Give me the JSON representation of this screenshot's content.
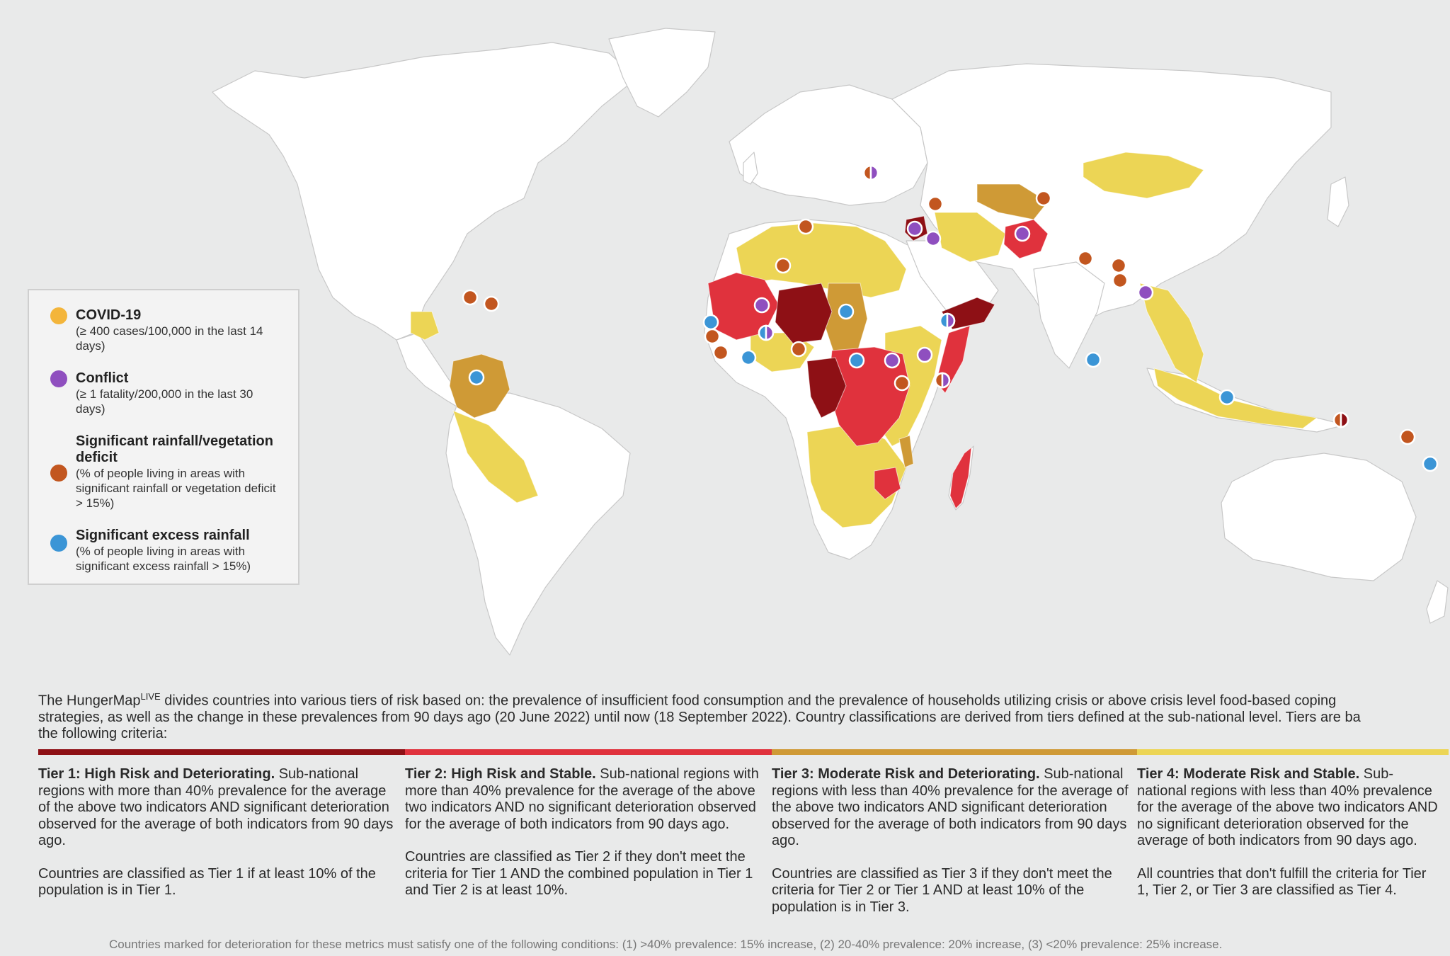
{
  "colors": {
    "background": "#e9eaea",
    "land": "#ffffff",
    "border": "#c8c8c8",
    "tier1": "#8e1015",
    "tier2": "#e0323d",
    "tier3": "#cf9a36",
    "tier4": "#ecd555",
    "covid": "#f3b53b",
    "conflict": "#8f4fbf",
    "deficit": "#c2561f",
    "excess": "#3b95d6"
  },
  "legend": [
    {
      "key": "covid",
      "title": "COVID-19",
      "desc": "(≥ 400 cases/100,000 in the last 14 days)",
      "color": "#f3b53b"
    },
    {
      "key": "conflict",
      "title": "Conflict",
      "desc": "(≥ 1 fatality/200,000 in the last 30 days)",
      "color": "#8f4fbf"
    },
    {
      "key": "deficit",
      "title": "Significant rainfall/vegetation deficit",
      "desc": "(% of people living in areas with significant rainfall or vegetation deficit > 15%)",
      "color": "#c2561f"
    },
    {
      "key": "excess",
      "title": "Significant excess rainfall",
      "desc": "(% of people living in areas with significant excess rainfall > 15%)",
      "color": "#3b95d6"
    }
  ],
  "intro": {
    "brand": "The HungerMap",
    "brand_sup": "LIVE",
    "line1_rest": " divides countries into various tiers of risk based on: the prevalence of insufficient food consumption and the prevalence of households utilizing crisis or above crisis level food-based coping",
    "line2": "strategies, as well as the change in these prevalences from 90 days ago (20 June 2022) until now (18 September 2022). Country classifications are derived from tiers defined at the sub-national level. Tiers are ba",
    "line3": "the following criteria:"
  },
  "tiers": [
    {
      "title": "Tier 1: High Risk and Deteriorating.",
      "description": "Sub-national regions with more than 40% prevalence for the average of the above two indicators AND significant deterioration observed for the average of both indicators from 90 days ago.",
      "classification": "Countries are classified as Tier 1 if at least 10% of the population is in Tier 1.",
      "color": "#8e1015"
    },
    {
      "title": "Tier 2: High Risk and Stable.",
      "description": "Sub-national regions with more than 40% prevalence for the average of the above two indicators AND no significant deterioration observed for the average of both indicators from 90 days ago.",
      "classification": "Countries are classified as Tier 2 if they don't meet the criteria for Tier 1 AND the combined population in Tier 1 and Tier 2 is at least 10%.",
      "color": "#e0323d"
    },
    {
      "title": "Tier 3: Moderate Risk and Deteriorating.",
      "description": "Sub-national regions with less than 40% prevalence for the average of the above two indicators AND significant deterioration observed for the average of both indicators from 90 days ago.",
      "classification": "Countries are classified as Tier 3 if they don't meet the criteria for Tier 2 or Tier 1 AND at least 10% of the population is in Tier 3.",
      "color": "#cf9a36"
    },
    {
      "title": "Tier 4: Moderate Risk and Stable.",
      "description": "Sub-national regions with less than 40% prevalence for the average of the above two indicators AND no significant deterioration observed for the average of both indicators from 90 days ago.",
      "classification": "All countries that don't fulfill the criteria for Tier 1, Tier 2, or Tier 3 are classified as Tier 4.",
      "color": "#ecd555"
    }
  ],
  "footnote": "Countries marked for deterioration for these metrics must satisfy one of the following conditions: (1) >40% prevalence: 15% increase, (2) 20-40% prevalence: 20% increase, (3) <20% prevalence: 25% increase."
}
